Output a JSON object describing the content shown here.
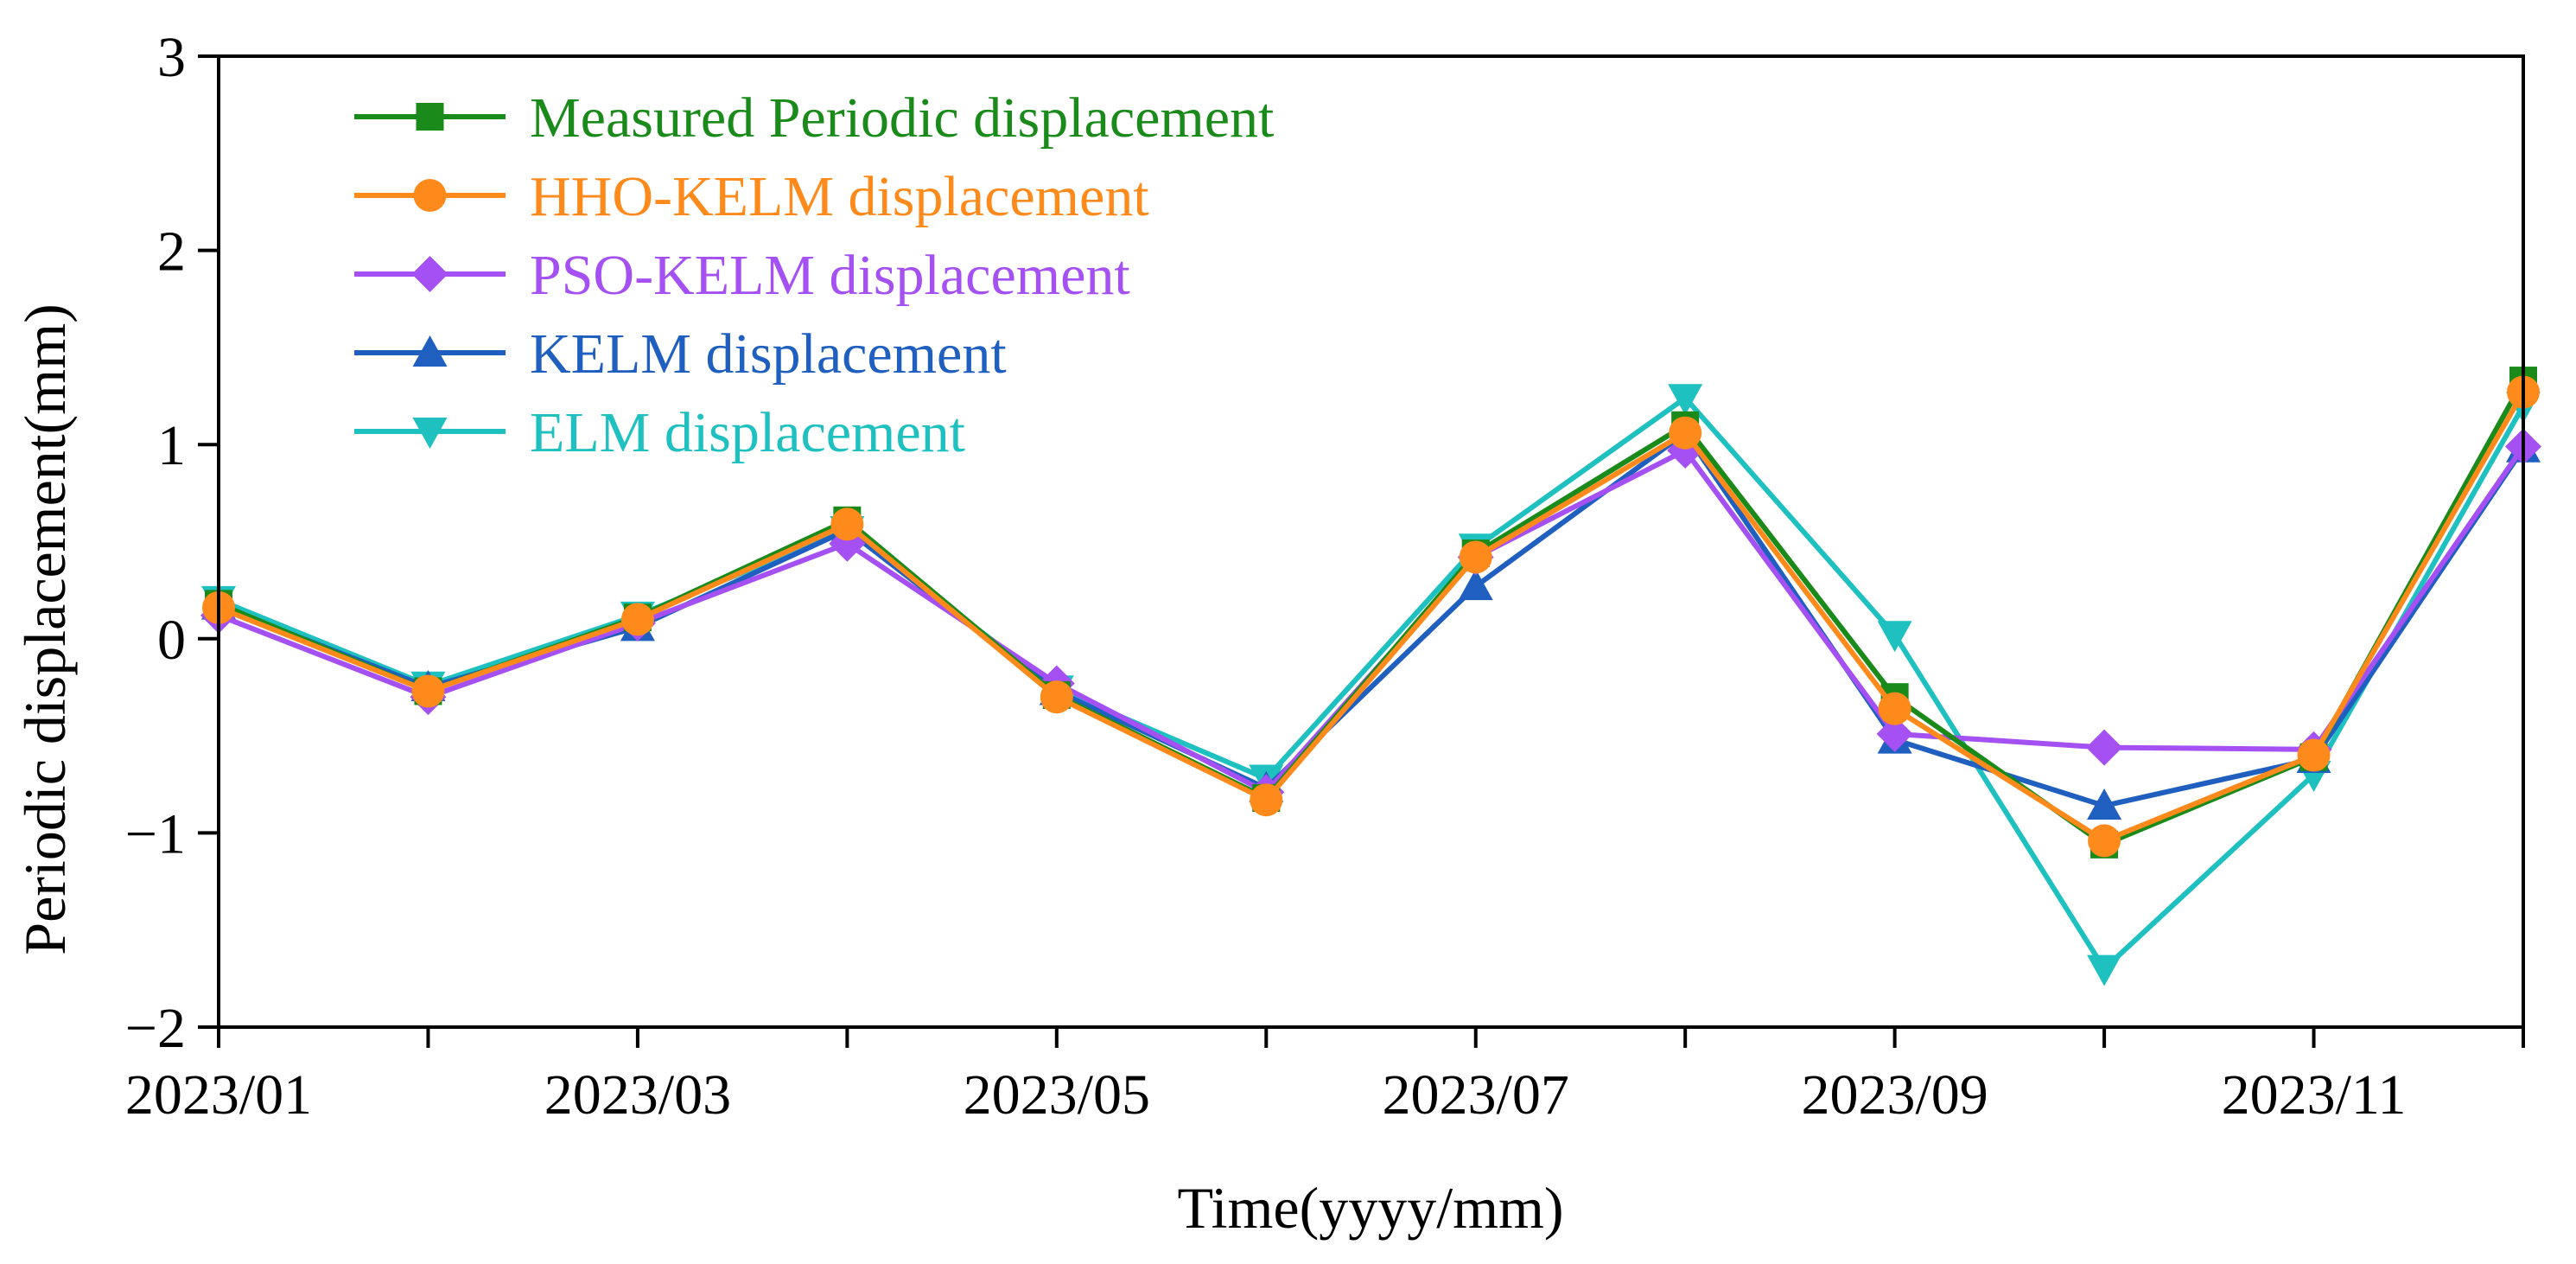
{
  "chart_data": {
    "type": "line",
    "title": "",
    "xlabel": "Time(yyyy/mm)",
    "ylabel": "Periodic displacement(mm)",
    "x": [
      "2023/01",
      "2023/02",
      "2023/03",
      "2023/04",
      "2023/05",
      "2023/06",
      "2023/07",
      "2023/08",
      "2023/09",
      "2023/10",
      "2023/11",
      "2023/12"
    ],
    "x_tick_labels": [
      "2023/01",
      "",
      "2023/03",
      "",
      "2023/05",
      "",
      "2023/07",
      "",
      "2023/09",
      "",
      "2023/11",
      ""
    ],
    "ylim": [
      -2,
      3
    ],
    "y_ticks": [
      -2,
      -1,
      0,
      1,
      2,
      3
    ],
    "y_tick_labels": [
      "−2",
      "−1",
      "0",
      "1",
      "2",
      "3"
    ],
    "grid": false,
    "legend_position": "top-left",
    "series": [
      {
        "name": "Measured Periodic displacement",
        "color": "#1a8a1a",
        "marker": "square",
        "values": [
          0.18,
          -0.27,
          0.11,
          0.61,
          -0.29,
          -0.82,
          0.44,
          1.1,
          -0.3,
          -1.06,
          -0.61,
          1.33
        ]
      },
      {
        "name": "HHO-KELM displacement",
        "color": "#ff8a1c",
        "marker": "circle",
        "values": [
          0.16,
          -0.27,
          0.1,
          0.59,
          -0.3,
          -0.83,
          0.42,
          1.06,
          -0.36,
          -1.04,
          -0.6,
          1.27
        ]
      },
      {
        "name": "PSO-KELM displacement",
        "color": "#a450f2",
        "marker": "diamond",
        "values": [
          0.12,
          -0.3,
          0.08,
          0.49,
          -0.23,
          -0.79,
          0.42,
          0.97,
          -0.49,
          -0.56,
          -0.57,
          0.99
        ]
      },
      {
        "name": "KELM displacement",
        "color": "#1f5fbf",
        "marker": "triangle-up",
        "values": [
          0.17,
          -0.25,
          0.06,
          0.56,
          -0.27,
          -0.77,
          0.27,
          1.06,
          -0.52,
          -0.86,
          -0.62,
          0.98
        ]
      },
      {
        "name": "ELM displacement",
        "color": "#1ec0c0",
        "marker": "triangle-down",
        "values": [
          0.2,
          -0.24,
          0.12,
          0.56,
          -0.26,
          -0.72,
          0.47,
          1.24,
          0.02,
          -1.7,
          -0.7,
          1.2
        ]
      }
    ]
  }
}
